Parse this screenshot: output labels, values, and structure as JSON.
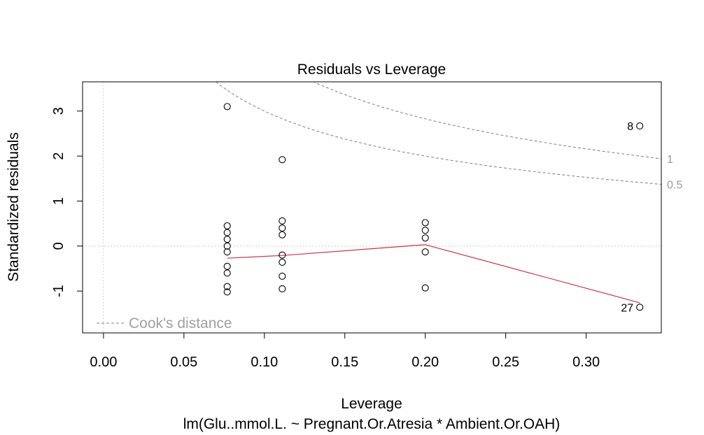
{
  "chart_data": {
    "type": "scatter",
    "title": "Residuals vs Leverage",
    "xlabel": "Leverage",
    "subtitle": "lm(Glu..mmol.L. ~ Pregnant.Or.Atresia * Ambient.Or.OAH)",
    "ylabel": "Standardized residuals",
    "xlim": [
      -0.013,
      0.3467
    ],
    "ylim": [
      -1.93,
      3.65
    ],
    "x_ticks": [
      {
        "v": 0.0,
        "label": "0.00"
      },
      {
        "v": 0.05,
        "label": "0.05"
      },
      {
        "v": 0.1,
        "label": "0.10"
      },
      {
        "v": 0.15,
        "label": "0.15"
      },
      {
        "v": 0.2,
        "label": "0.20"
      },
      {
        "v": 0.25,
        "label": "0.25"
      },
      {
        "v": 0.3,
        "label": "0.30"
      }
    ],
    "y_ticks": [
      {
        "v": -1,
        "label": "-1"
      },
      {
        "v": 0,
        "label": "0"
      },
      {
        "v": 1,
        "label": "1"
      },
      {
        "v": 2,
        "label": "2"
      },
      {
        "v": 3,
        "label": "3"
      }
    ],
    "points": [
      {
        "x": 0.0769,
        "y": 3.1
      },
      {
        "x": 0.0769,
        "y": 0.45
      },
      {
        "x": 0.0769,
        "y": 0.3
      },
      {
        "x": 0.0769,
        "y": 0.15
      },
      {
        "x": 0.0769,
        "y": 0.0
      },
      {
        "x": 0.0769,
        "y": -0.13
      },
      {
        "x": 0.0769,
        "y": -0.45
      },
      {
        "x": 0.0769,
        "y": -0.6
      },
      {
        "x": 0.0769,
        "y": -0.9
      },
      {
        "x": 0.0769,
        "y": -1.02
      },
      {
        "x": 0.1111,
        "y": 1.92
      },
      {
        "x": 0.1111,
        "y": 0.56
      },
      {
        "x": 0.1111,
        "y": 0.4
      },
      {
        "x": 0.1111,
        "y": 0.25
      },
      {
        "x": 0.1111,
        "y": -0.2
      },
      {
        "x": 0.1111,
        "y": -0.36
      },
      {
        "x": 0.1111,
        "y": -0.67
      },
      {
        "x": 0.1111,
        "y": -0.95
      },
      {
        "x": 0.2,
        "y": 0.52
      },
      {
        "x": 0.2,
        "y": 0.35
      },
      {
        "x": 0.2,
        "y": 0.18
      },
      {
        "x": 0.2,
        "y": -0.13
      },
      {
        "x": 0.2,
        "y": -0.93
      },
      {
        "x": 0.3333,
        "y": 2.67
      },
      {
        "x": 0.3333,
        "y": -1.36
      }
    ],
    "point_labels": [
      {
        "x": 0.3333,
        "y": 2.67,
        "label": "8"
      },
      {
        "x": 0.3333,
        "y": -1.36,
        "label": "27"
      }
    ],
    "smooth_line": {
      "color": "#cd3545",
      "points": [
        {
          "x": 0.0769,
          "y": -0.27
        },
        {
          "x": 0.1111,
          "y": -0.21
        },
        {
          "x": 0.2,
          "y": 0.03
        },
        {
          "x": 0.3333,
          "y": -1.26
        }
      ]
    },
    "cooks_contours": [
      {
        "level_label": "1",
        "k": 0.7071,
        "color": "#808080"
      },
      {
        "level_label": "0.5",
        "k": 0.5,
        "color": "#808080"
      }
    ],
    "cooks_p": 4,
    "legend": {
      "label": "Cook's distance",
      "position": "bottom-left",
      "color": "#a0a0a0"
    },
    "reference_lines": {
      "h": 0,
      "v": 0,
      "color": "#bbbbbb",
      "style": "dotted"
    },
    "grid": false
  }
}
